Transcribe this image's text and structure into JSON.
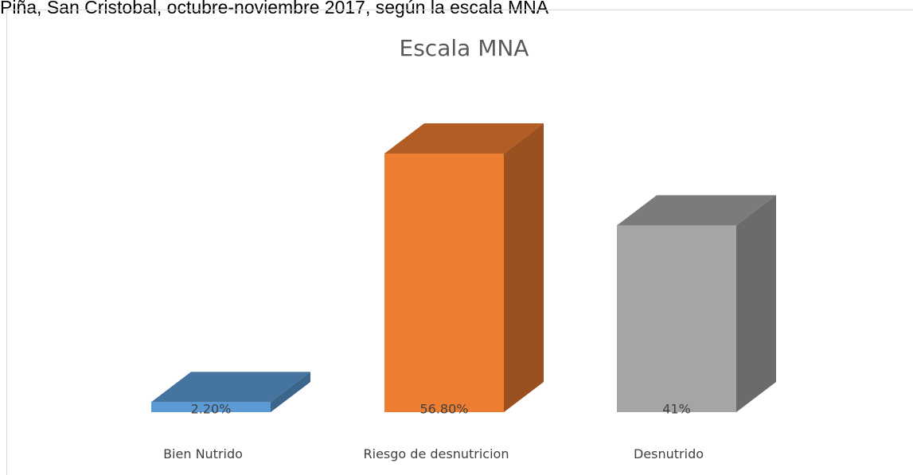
{
  "caption": "Piña, San Cristobal, octubre-noviembre 2017, según la escala MNA",
  "chart_data": {
    "type": "bar3d",
    "title": "Escala MNA",
    "categories": [
      "Bien Nutrido",
      "Riesgo de desnutricion",
      "Desnutrido"
    ],
    "values": [
      2.2,
      56.8,
      41
    ],
    "value_labels": [
      "2.20%",
      "56.80%",
      "41%"
    ],
    "colors": [
      "#5b9bd5",
      "#ed7d31",
      "#a5a5a5"
    ]
  }
}
